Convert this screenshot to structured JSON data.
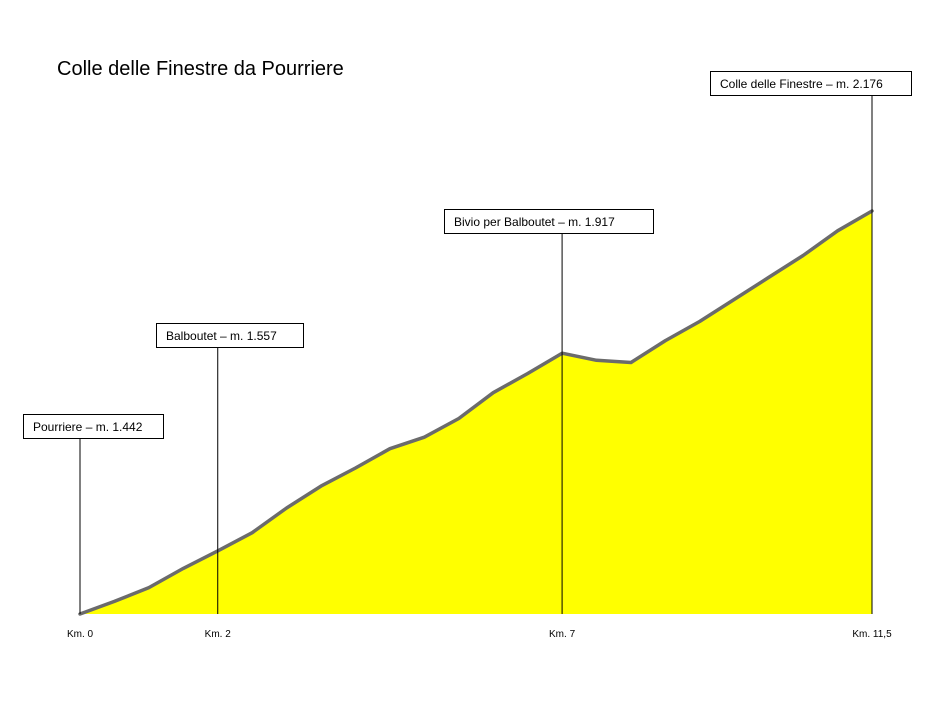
{
  "chart_data": {
    "type": "area",
    "title": "Colle delle Finestre da Pourriere",
    "xlabel": "",
    "ylabel": "",
    "xlim": [
      0,
      11.5
    ],
    "ylim": [
      1442,
      2176
    ],
    "grid": false,
    "colors": {
      "fill": "#ffff00",
      "line": "#6b6b6b",
      "marker": "#000000"
    },
    "profile": {
      "x": [
        0,
        0.5,
        1,
        1.5,
        2,
        2.5,
        3,
        3.5,
        4,
        4.5,
        5,
        5.5,
        6,
        6.5,
        7,
        7.5,
        8,
        8.5,
        9,
        9.5,
        10,
        10.5,
        11,
        11.5
      ],
      "y": [
        1442,
        1465,
        1490,
        1525,
        1557,
        1590,
        1635,
        1675,
        1708,
        1743,
        1764,
        1798,
        1845,
        1880,
        1917,
        1904,
        1900,
        1940,
        1975,
        2015,
        2055,
        2095,
        2140,
        2176
      ]
    },
    "km_ticks": [
      {
        "km": 0,
        "label": "Km. 0"
      },
      {
        "km": 2,
        "label": "Km. 2"
      },
      {
        "km": 7,
        "label": "Km. 7"
      },
      {
        "km": 11.5,
        "label": "Km. 11,5"
      }
    ],
    "annotations": [
      {
        "km": 0,
        "elevation": 1442,
        "label": "Pourriere – m. 1.442"
      },
      {
        "km": 2,
        "elevation": 1557,
        "label": "Balboutet  – m. 1.557"
      },
      {
        "km": 7,
        "elevation": 1917,
        "label": "Bivio per Balboutet  – m. 1.917"
      },
      {
        "km": 11.5,
        "elevation": 2176,
        "label": "Colle delle Finestre  – m. 2.176"
      }
    ]
  }
}
